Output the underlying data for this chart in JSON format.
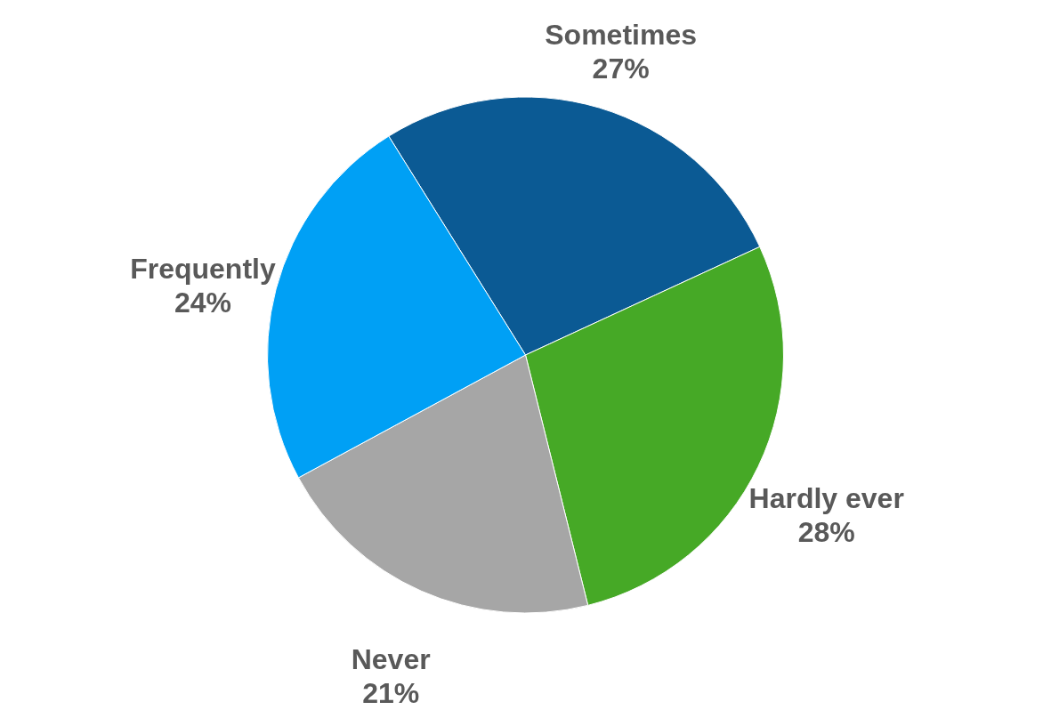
{
  "chart_data": {
    "type": "pie",
    "categories": [
      "Sometimes",
      "Hardly ever",
      "Never",
      "Frequently"
    ],
    "values": [
      27,
      28,
      21,
      24
    ],
    "value_labels": [
      "27%",
      "28%",
      "21%",
      "24%"
    ],
    "colors": [
      "#0b5a94",
      "#46a926",
      "#a6a6a6",
      "#00a0f5"
    ]
  }
}
